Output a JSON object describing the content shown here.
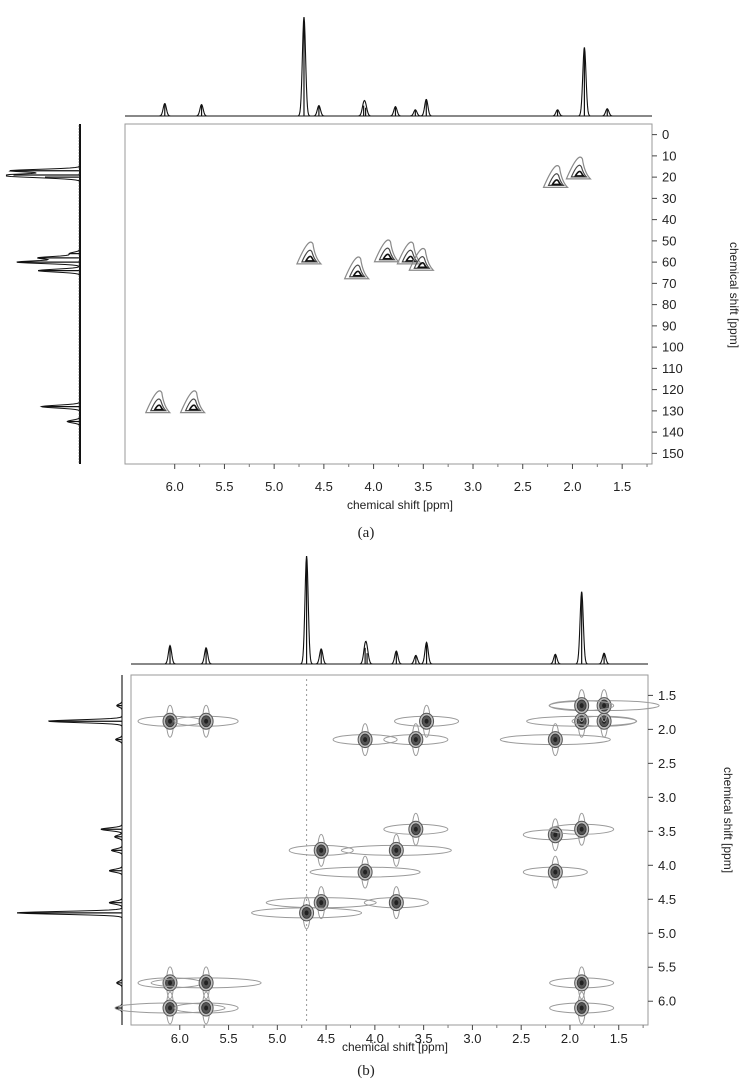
{
  "figure": {
    "panels": [
      {
        "id": "a",
        "label": "(a)",
        "xlabel": "chemical shift [ppm]",
        "ylabel": "chemical shift [ppm]",
        "x_ticks": [
          "6.0",
          "5.5",
          "5.0",
          "4.5",
          "4.0",
          "3.5",
          "3.0",
          "2.5",
          "2.0",
          "1.5"
        ],
        "y_ticks": [
          "0",
          "10",
          "20",
          "30",
          "40",
          "50",
          "60",
          "70",
          "80",
          "90",
          "100",
          "110",
          "120",
          "130",
          "140",
          "150"
        ]
      },
      {
        "id": "b",
        "label": "(b)",
        "xlabel": "chemical shift [ppm]",
        "ylabel": "chemical shift [ppm]",
        "x_ticks": [
          "6.0",
          "5.5",
          "5.0",
          "4.5",
          "4.0",
          "3.5",
          "3.0",
          "2.5",
          "2.0",
          "1.5"
        ],
        "y_ticks": [
          "1.5",
          "2.0",
          "2.5",
          "3.0",
          "3.5",
          "4.0",
          "4.5",
          "5.0",
          "5.5",
          "6.0"
        ]
      }
    ]
  },
  "chart_data": [
    {
      "type": "heatmap",
      "subtype": "2D NMR contour plot (1H-13C correlation)",
      "label": "(a)",
      "xlabel": "chemical shift [ppm]",
      "ylabel": "chemical shift [ppm]",
      "xlim": [
        6.5,
        1.2
      ],
      "ylim": [
        -5,
        155
      ],
      "x_ticks": [
        6.0,
        5.5,
        5.0,
        4.5,
        4.0,
        3.5,
        3.0,
        2.5,
        2.0,
        1.5
      ],
      "y_ticks": [
        0,
        10,
        20,
        30,
        40,
        50,
        60,
        70,
        80,
        90,
        100,
        110,
        120,
        130,
        140,
        150
      ],
      "cross_peaks": [
        {
          "x": 6.15,
          "y": 128
        },
        {
          "x": 5.8,
          "y": 128
        },
        {
          "x": 4.63,
          "y": 58
        },
        {
          "x": 4.15,
          "y": 65
        },
        {
          "x": 3.85,
          "y": 57
        },
        {
          "x": 3.62,
          "y": 58
        },
        {
          "x": 3.5,
          "y": 61
        },
        {
          "x": 2.15,
          "y": 22
        },
        {
          "x": 1.92,
          "y": 18
        }
      ],
      "top_projection_1H": [
        {
          "x": 6.1,
          "h": 0.12
        },
        {
          "x": 5.73,
          "h": 0.11
        },
        {
          "x": 4.7,
          "h": 0.95
        },
        {
          "x": 4.55,
          "h": 0.1
        },
        {
          "x": 4.1,
          "h": 0.1
        },
        {
          "x": 4.08,
          "h": 0.08
        },
        {
          "x": 3.78,
          "h": 0.09
        },
        {
          "x": 3.58,
          "h": 0.06
        },
        {
          "x": 3.47,
          "h": 0.16
        },
        {
          "x": 2.15,
          "h": 0.06
        },
        {
          "x": 1.88,
          "h": 0.66
        },
        {
          "x": 1.65,
          "h": 0.07
        }
      ],
      "side_projection_13C": [
        {
          "y": 17,
          "h": 1.0
        },
        {
          "y": 19,
          "h": 0.95
        },
        {
          "y": 20,
          "h": 0.5
        },
        {
          "y": 56,
          "h": 0.15
        },
        {
          "y": 58,
          "h": 0.6
        },
        {
          "y": 60,
          "h": 0.9
        },
        {
          "y": 64,
          "h": 0.6
        },
        {
          "y": 128,
          "h": 0.55
        },
        {
          "y": 135,
          "h": 0.18
        }
      ]
    },
    {
      "type": "heatmap",
      "subtype": "2D NMR contour plot (1H-1H correlation)",
      "label": "(b)",
      "xlabel": "chemical shift [ppm]",
      "ylabel": "chemical shift [ppm]",
      "xlim": [
        6.5,
        1.2
      ],
      "ylim": [
        1.2,
        6.35
      ],
      "x_ticks": [
        6.0,
        5.5,
        5.0,
        4.5,
        4.0,
        3.5,
        3.0,
        2.5,
        2.0,
        1.5
      ],
      "y_ticks": [
        1.5,
        2.0,
        2.5,
        3.0,
        3.5,
        4.0,
        4.5,
        5.0,
        5.5,
        6.0
      ],
      "cross_peaks": [
        {
          "x": 6.1,
          "y": 1.88
        },
        {
          "x": 5.73,
          "y": 1.88
        },
        {
          "x": 4.1,
          "y": 2.15
        },
        {
          "x": 3.58,
          "y": 2.15
        },
        {
          "x": 3.47,
          "y": 1.88
        },
        {
          "x": 3.58,
          "y": 3.47
        },
        {
          "x": 2.15,
          "y": 3.55
        },
        {
          "x": 1.88,
          "y": 3.47
        },
        {
          "x": 2.15,
          "y": 4.1
        },
        {
          "x": 4.55,
          "y": 3.78
        },
        {
          "x": 3.78,
          "y": 3.78
        },
        {
          "x": 4.1,
          "y": 4.1
        },
        {
          "x": 4.55,
          "y": 4.55
        },
        {
          "x": 3.78,
          "y": 4.55
        },
        {
          "x": 4.7,
          "y": 4.7
        },
        {
          "x": 6.1,
          "y": 5.73
        },
        {
          "x": 5.73,
          "y": 5.73
        },
        {
          "x": 6.1,
          "y": 6.1
        },
        {
          "x": 5.73,
          "y": 6.1
        },
        {
          "x": 1.88,
          "y": 5.73
        },
        {
          "x": 1.88,
          "y": 6.1
        },
        {
          "x": 1.88,
          "y": 1.88
        },
        {
          "x": 1.65,
          "y": 1.88
        },
        {
          "x": 1.65,
          "y": 1.65
        },
        {
          "x": 1.88,
          "y": 1.65
        },
        {
          "x": 2.15,
          "y": 2.15
        }
      ],
      "top_projection_1H": [
        {
          "x": 6.1,
          "h": 0.17
        },
        {
          "x": 5.73,
          "h": 0.15
        },
        {
          "x": 4.7,
          "h": 1.0
        },
        {
          "x": 4.55,
          "h": 0.14
        },
        {
          "x": 4.1,
          "h": 0.15
        },
        {
          "x": 4.08,
          "h": 0.1
        },
        {
          "x": 3.78,
          "h": 0.12
        },
        {
          "x": 3.58,
          "h": 0.08
        },
        {
          "x": 3.47,
          "h": 0.2
        },
        {
          "x": 2.15,
          "h": 0.09
        },
        {
          "x": 1.88,
          "h": 0.67
        },
        {
          "x": 1.65,
          "h": 0.1
        }
      ],
      "side_projection_1H": [
        {
          "y": 1.65,
          "h": 0.05
        },
        {
          "y": 1.88,
          "h": 0.7
        },
        {
          "y": 2.15,
          "h": 0.06
        },
        {
          "y": 3.47,
          "h": 0.2
        },
        {
          "y": 3.58,
          "h": 0.07
        },
        {
          "y": 3.78,
          "h": 0.1
        },
        {
          "y": 4.08,
          "h": 0.12
        },
        {
          "y": 4.55,
          "h": 0.12
        },
        {
          "y": 4.7,
          "h": 1.0
        },
        {
          "y": 5.73,
          "h": 0.05
        },
        {
          "y": 6.1,
          "h": 0.06
        }
      ]
    }
  ]
}
